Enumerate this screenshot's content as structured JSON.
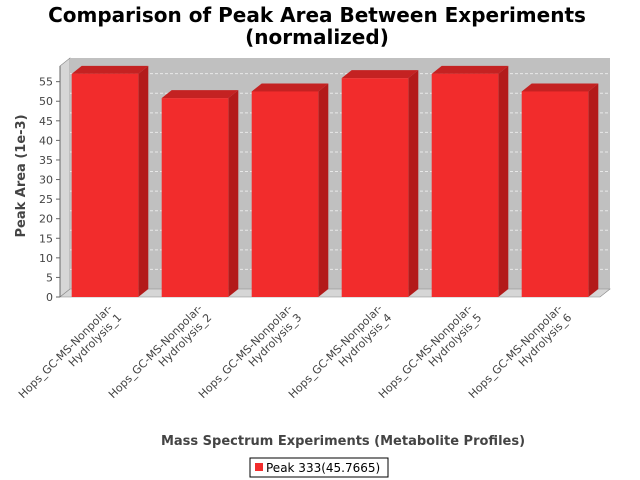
{
  "chart_data": {
    "type": "bar",
    "title_line1": "Comparison of Peak Area Between Experiments",
    "title_line2": "(normalized)",
    "xlabel": "Mass Spectrum Experiments (Metabolite Profiles)",
    "ylabel": "Peak Area (1e-3)",
    "categories": [
      [
        "Hops_GC-MS-Nonpolar-",
        "Hydrolysis_1"
      ],
      [
        "Hops_GC-MS-Nonpolar-",
        "Hydrolysis_2"
      ],
      [
        "Hops_GC-MS-Nonpolar-",
        "Hydrolysis_3"
      ],
      [
        "Hops_GC-MS-Nonpolar-",
        "Hydrolysis_4"
      ],
      [
        "Hops_GC-MS-Nonpolar-",
        "Hydrolysis_5"
      ],
      [
        "Hops_GC-MS-Nonpolar-",
        "Hydrolysis_6"
      ]
    ],
    "series": [
      {
        "name": "Peak 333(45.7665)",
        "values": [
          57.0,
          50.8,
          52.5,
          55.9,
          57.0,
          52.5
        ]
      }
    ],
    "yticks": [
      0,
      5,
      10,
      15,
      20,
      25,
      30,
      35,
      40,
      45,
      50,
      55
    ],
    "ylim": [
      0,
      59
    ],
    "grid": true,
    "legend_position": "bottom",
    "colors": {
      "bar_front": "#f22c2c",
      "bar_top": "#c42222",
      "bar_side": "#b31b1b",
      "plot_back": "#c0c0c0",
      "plot_wall": "#d6d6d6",
      "grid": "#e8e8e8"
    }
  }
}
